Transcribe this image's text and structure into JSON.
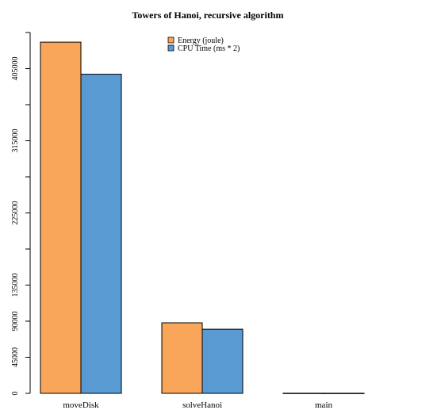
{
  "chart_data": {
    "type": "bar",
    "title": "Towers of Hanoi, recursive algorithm",
    "xlabel": "",
    "ylabel": "",
    "categories": [
      "moveDisk",
      "solveHanoi",
      "main"
    ],
    "series": [
      {
        "name": "Energy (joule)",
        "color": "#F9A65A",
        "values": [
          438000,
          88000,
          200
        ]
      },
      {
        "name": "CPU Time (ms * 2)",
        "color": "#599AD3",
        "values": [
          398000,
          80000,
          150
        ]
      }
    ],
    "ylim": [
      0,
      450000
    ],
    "yticks": [
      0,
      45000,
      90000,
      135000,
      225000,
      315000,
      405000
    ],
    "y_minor_ticks": [
      180000,
      270000,
      360000,
      450000
    ],
    "legend_position": "top-center",
    "grid": false
  }
}
